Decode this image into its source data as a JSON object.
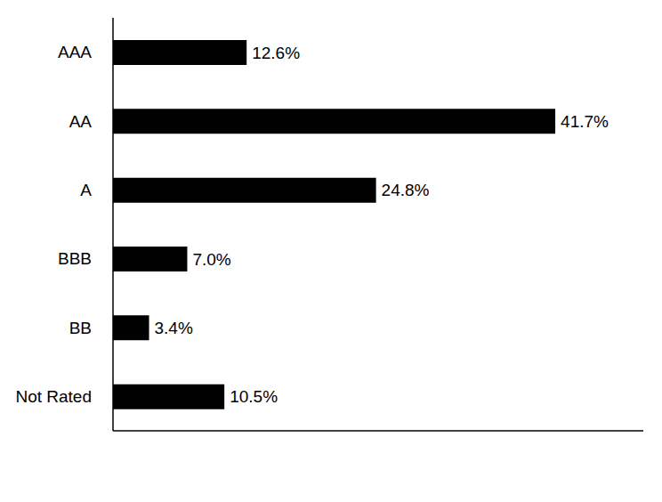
{
  "chart_data": {
    "type": "bar",
    "orientation": "horizontal",
    "categories": [
      "AAA",
      "AA",
      "A",
      "BBB",
      "BB",
      "Not Rated"
    ],
    "values": [
      12.6,
      41.7,
      24.8,
      7.0,
      3.4,
      10.5
    ],
    "value_labels": [
      "12.6%",
      "41.7%",
      "24.8%",
      "7.0%",
      "3.4%",
      "10.5%"
    ],
    "color": "#000000",
    "xlim": [
      0,
      50
    ],
    "data_labels": true,
    "tick_labels": "y",
    "grid": false
  }
}
